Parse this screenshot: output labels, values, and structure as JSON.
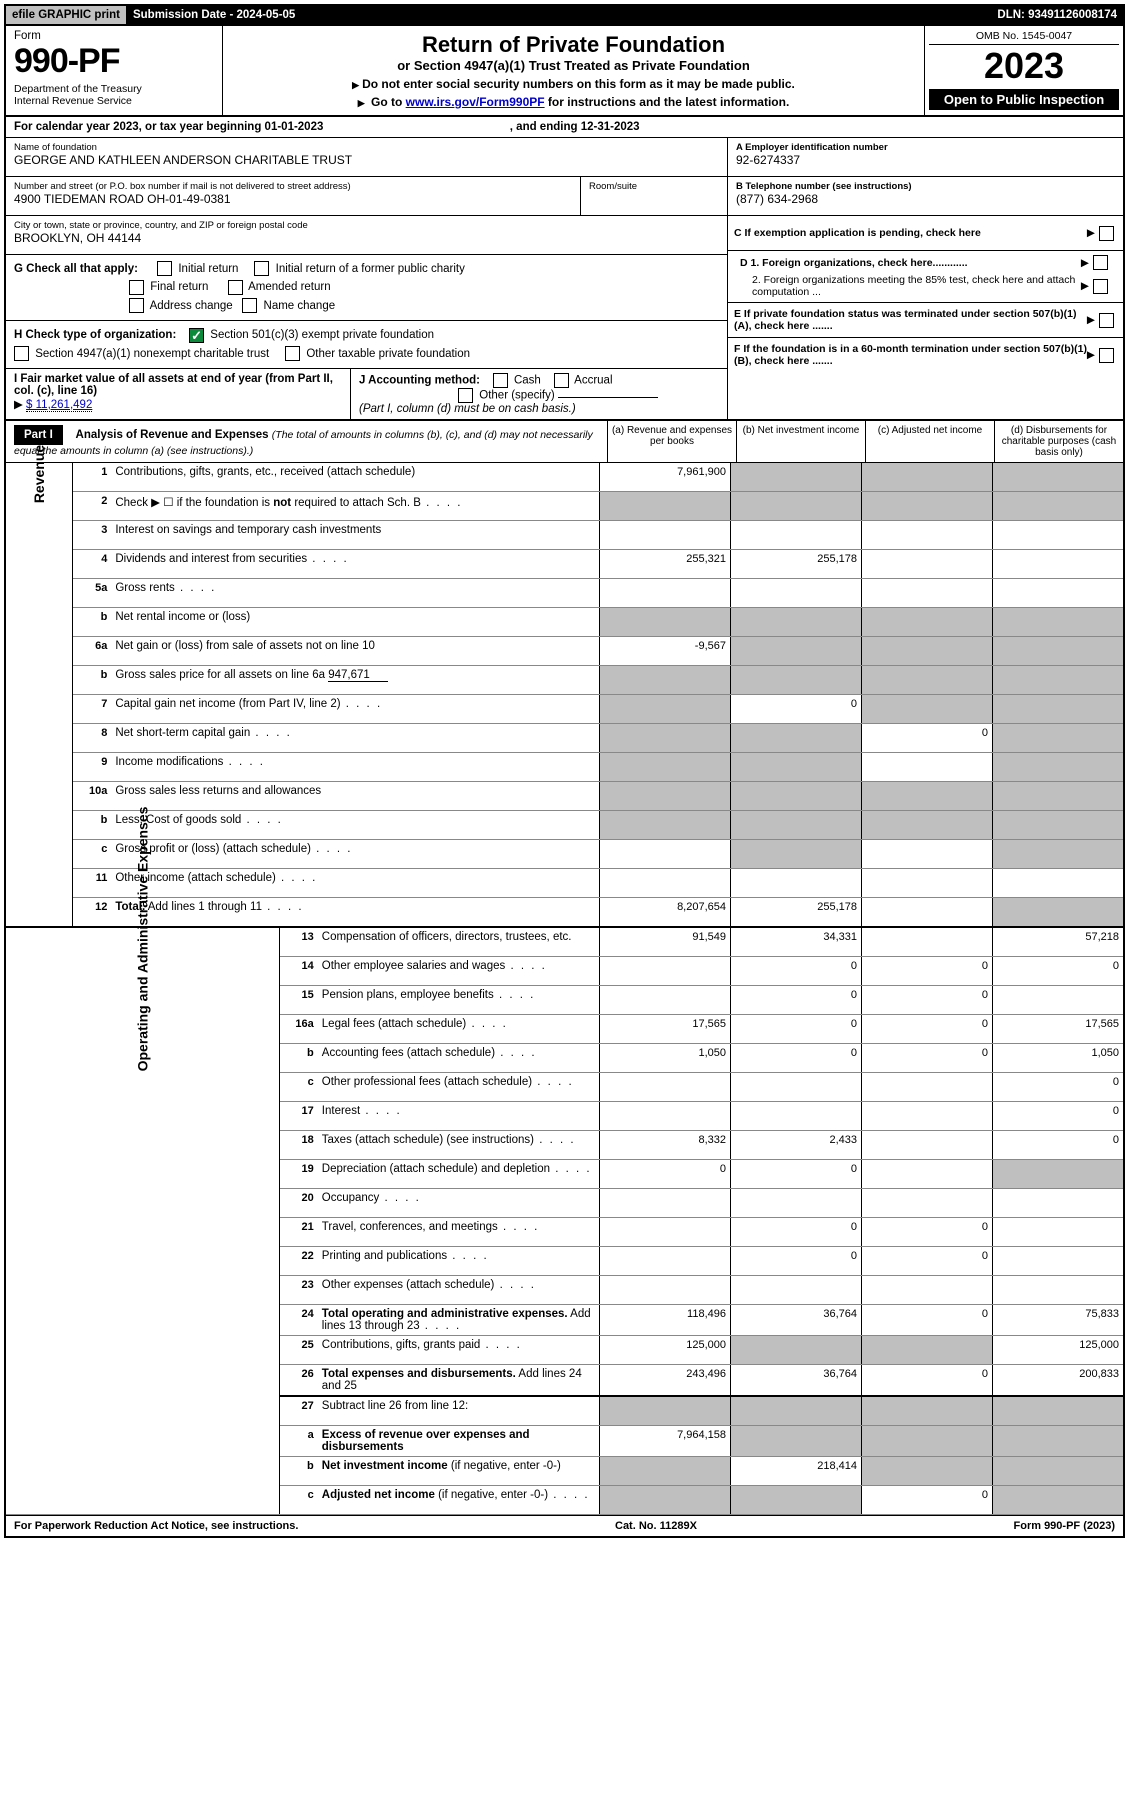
{
  "topbar": {
    "efile": "efile GRAPHIC print",
    "submission": "Submission Date - 2024-05-05",
    "dln": "DLN: 93491126008174"
  },
  "header": {
    "form_label": "Form",
    "form_number": "990-PF",
    "dept": "Department of the Treasury",
    "irs": "Internal Revenue Service",
    "title": "Return of Private Foundation",
    "subtitle": "or Section 4947(a)(1) Trust Treated as Private Foundation",
    "instr1": "Do not enter social security numbers on this form as it may be made public.",
    "instr2_pre": "Go to ",
    "instr2_link": "www.irs.gov/Form990PF",
    "instr2_post": " for instructions and the latest information.",
    "omb": "OMB No. 1545-0047",
    "year": "2023",
    "inspection": "Open to Public Inspection"
  },
  "calendar": {
    "pre": "For calendar year 2023, or tax year beginning ",
    "begin": "01-01-2023",
    "mid": ", and ending ",
    "end": "12-31-2023"
  },
  "entity": {
    "name_label": "Name of foundation",
    "name": "GEORGE AND KATHLEEN ANDERSON CHARITABLE TRUST",
    "addr_label": "Number and street (or P.O. box number if mail is not delivered to street address)",
    "addr": "4900 TIEDEMAN ROAD OH-01-49-0381",
    "room_label": "Room/suite",
    "city_label": "City or town, state or province, country, and ZIP or foreign postal code",
    "city": "BROOKLYN, OH  44144",
    "ein_label": "A Employer identification number",
    "ein": "92-6274337",
    "phone_label": "B Telephone number (see instructions)",
    "phone": "(877) 634-2968",
    "c_label": "C If exemption application is pending, check here",
    "d1": "D 1. Foreign organizations, check here............",
    "d2": "2. Foreign organizations meeting the 85% test, check here and attach computation ...",
    "e_label": "E  If private foundation status was terminated under section 507(b)(1)(A), check here .......",
    "f_label": "F  If the foundation is in a 60-month termination under section 507(b)(1)(B), check here .......",
    "g_label": "G Check all that apply:",
    "g_opts": [
      "Initial return",
      "Initial return of a former public charity",
      "Final return",
      "Amended return",
      "Address change",
      "Name change"
    ],
    "h_label": "H Check type of organization:",
    "h_opts": [
      "Section 501(c)(3) exempt private foundation",
      "Section 4947(a)(1) nonexempt charitable trust",
      "Other taxable private foundation"
    ],
    "i_label": "I Fair market value of all assets at end of year (from Part II, col. (c), line 16)",
    "i_value": "$  11,261,492",
    "j_label": "J Accounting method:",
    "j_opts": [
      "Cash",
      "Accrual",
      "Other (specify)"
    ],
    "j_note": "(Part I, column (d) must be on cash basis.)"
  },
  "part1": {
    "header": "Part I",
    "title": "Analysis of Revenue and Expenses",
    "title_note": "(The total of amounts in columns (b), (c), and (d) may not necessarily equal the amounts in column (a) (see instructions).)",
    "col_a": "(a)   Revenue and expenses per books",
    "col_b": "(b)   Net investment income",
    "col_c": "(c)   Adjusted net income",
    "col_d": "(d)   Disbursements for charitable purposes (cash basis only)"
  },
  "sections": {
    "revenue": "Revenue",
    "opex": "Operating and Administrative Expenses"
  },
  "rows": [
    {
      "n": "1",
      "d": "Contributions, gifts, grants, etc., received (attach schedule)",
      "a": "7,961,900",
      "bs": true,
      "cs": true,
      "ds": true
    },
    {
      "n": "2",
      "d": "Check ▶ ☐ if the foundation is <b>not</b> required to attach Sch. B",
      "dots": true,
      "as": true,
      "bs": true,
      "cs": true,
      "ds": true
    },
    {
      "n": "3",
      "d": "Interest on savings and temporary cash investments"
    },
    {
      "n": "4",
      "d": "Dividends and interest from securities",
      "dots": true,
      "a": "255,321",
      "b": "255,178"
    },
    {
      "n": "5a",
      "d": "Gross rents",
      "dots": true
    },
    {
      "n": "b",
      "d": "Net rental income or (loss)",
      "as": true,
      "bs": true,
      "cs": true,
      "ds": true
    },
    {
      "n": "6a",
      "d": "Net gain or (loss) from sale of assets not on line 10",
      "a": "-9,567",
      "bs": true,
      "cs": true,
      "ds": true
    },
    {
      "n": "b",
      "d": "Gross sales price for all assets on line 6a <span class='underline'>947,671</span>",
      "as": true,
      "bs": true,
      "cs": true,
      "ds": true
    },
    {
      "n": "7",
      "d": "Capital gain net income (from Part IV, line 2)",
      "dots": true,
      "as": true,
      "b": "0",
      "cs": true,
      "ds": true
    },
    {
      "n": "8",
      "d": "Net short-term capital gain",
      "dots": true,
      "as": true,
      "bs": true,
      "c": "0",
      "ds": true
    },
    {
      "n": "9",
      "d": "Income modifications",
      "dots": true,
      "as": true,
      "bs": true,
      "ds": true
    },
    {
      "n": "10a",
      "d": "Gross sales less returns and allowances",
      "as": true,
      "bs": true,
      "cs": true,
      "ds": true
    },
    {
      "n": "b",
      "d": "Less: Cost of goods sold",
      "dots": true,
      "as": true,
      "bs": true,
      "cs": true,
      "ds": true
    },
    {
      "n": "c",
      "d": "Gross profit or (loss) (attach schedule)",
      "dots": true,
      "bs": true,
      "ds": true
    },
    {
      "n": "11",
      "d": "Other income (attach schedule)",
      "dots": true
    },
    {
      "n": "12",
      "d": "<b>Total.</b> Add lines 1 through 11",
      "dots": true,
      "a": "8,207,654",
      "b": "255,178",
      "ds": true,
      "bold": true,
      "thick": true
    }
  ],
  "oprows": [
    {
      "n": "13",
      "d": "Compensation of officers, directors, trustees, etc.",
      "a": "91,549",
      "b": "34,331",
      "dd": "57,218"
    },
    {
      "n": "14",
      "d": "Other employee salaries and wages",
      "dots": true,
      "b": "0",
      "c": "0",
      "dd": "0"
    },
    {
      "n": "15",
      "d": "Pension plans, employee benefits",
      "dots": true,
      "b": "0",
      "c": "0"
    },
    {
      "n": "16a",
      "d": "Legal fees (attach schedule)",
      "dots": true,
      "a": "17,565",
      "b": "0",
      "c": "0",
      "dd": "17,565"
    },
    {
      "n": "b",
      "d": "Accounting fees (attach schedule)",
      "dots": true,
      "a": "1,050",
      "b": "0",
      "c": "0",
      "dd": "1,050"
    },
    {
      "n": "c",
      "d": "Other professional fees (attach schedule)",
      "dots": true,
      "dd": "0"
    },
    {
      "n": "17",
      "d": "Interest",
      "dots": true,
      "dd": "0"
    },
    {
      "n": "18",
      "d": "Taxes (attach schedule) (see instructions)",
      "dots": true,
      "a": "8,332",
      "b": "2,433",
      "dd": "0"
    },
    {
      "n": "19",
      "d": "Depreciation (attach schedule) and depletion",
      "dots": true,
      "a": "0",
      "b": "0",
      "ds": true
    },
    {
      "n": "20",
      "d": "Occupancy",
      "dots": true
    },
    {
      "n": "21",
      "d": "Travel, conferences, and meetings",
      "dots": true,
      "b": "0",
      "c": "0"
    },
    {
      "n": "22",
      "d": "Printing and publications",
      "dots": true,
      "b": "0",
      "c": "0"
    },
    {
      "n": "23",
      "d": "Other expenses (attach schedule)",
      "dots": true
    },
    {
      "n": "24",
      "d": "<b>Total operating and administrative expenses.</b> Add lines 13 through 23",
      "dots": true,
      "a": "118,496",
      "b": "36,764",
      "c": "0",
      "dd": "75,833"
    },
    {
      "n": "25",
      "d": "Contributions, gifts, grants paid",
      "dots": true,
      "a": "125,000",
      "bs": true,
      "cs": true,
      "dd": "125,000"
    },
    {
      "n": "26",
      "d": "<b>Total expenses and disbursements.</b> Add lines 24 and 25",
      "a": "243,496",
      "b": "36,764",
      "c": "0",
      "dd": "200,833",
      "thick": true
    },
    {
      "n": "27",
      "d": "Subtract line 26 from line 12:",
      "as": true,
      "bs": true,
      "cs": true,
      "ds": true
    },
    {
      "n": "a",
      "d": "<b>Excess of revenue over expenses and disbursements</b>",
      "a": "7,964,158",
      "bs": true,
      "cs": true,
      "ds": true
    },
    {
      "n": "b",
      "d": "<b>Net investment income</b> (if negative, enter -0-)",
      "as": true,
      "b": "218,414",
      "cs": true,
      "ds": true
    },
    {
      "n": "c",
      "d": "<b>Adjusted net income</b> (if negative, enter -0-)",
      "dots": true,
      "as": true,
      "bs": true,
      "c": "0",
      "ds": true
    }
  ],
  "footer": {
    "left": "For Paperwork Reduction Act Notice, see instructions.",
    "center": "Cat. No. 11289X",
    "right": "Form 990-PF (2023)"
  },
  "style": {
    "shaded_bg": "#bfbfbf",
    "link_color": "#0000cc",
    "check_green": "#0a8a3a"
  }
}
